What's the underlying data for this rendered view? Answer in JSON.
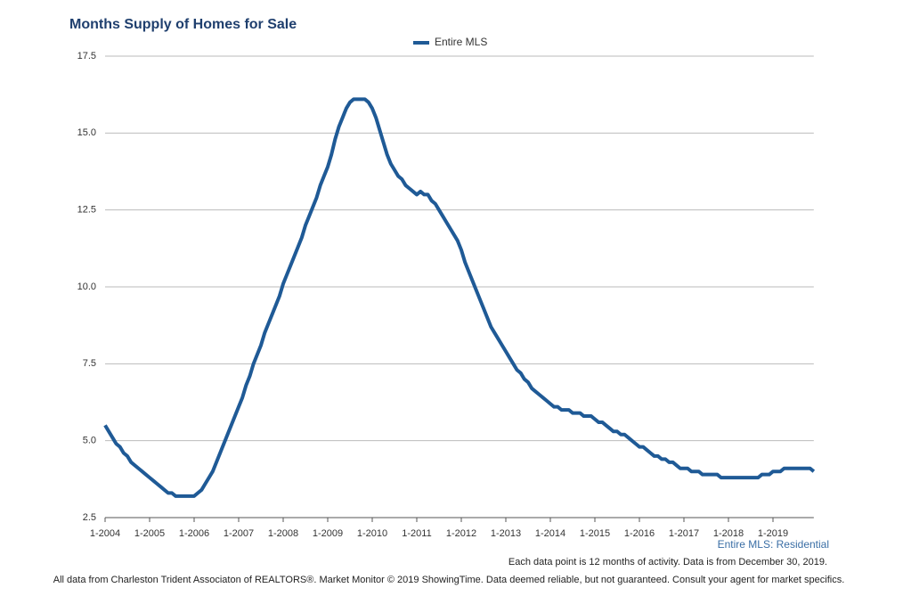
{
  "chart_data": {
    "type": "line",
    "title": "Months Supply of Homes for Sale",
    "annotation": "Entire MLS: Residential",
    "note": "Each data point is 12 months of activity. Data is from December 30, 2019.",
    "footer": "All data from Charleston Trident Associaton of REALTORS®. Market Monitor © 2019 ShowingTime. Data deemed reliable, but not guaranteed. Consult your agent for market specifics.",
    "categories": [
      "1-2004",
      null,
      null,
      null,
      null,
      null,
      null,
      null,
      null,
      null,
      null,
      null,
      "1-2005",
      null,
      null,
      null,
      null,
      null,
      null,
      null,
      null,
      null,
      null,
      null,
      "1-2006",
      null,
      null,
      null,
      null,
      null,
      null,
      null,
      null,
      null,
      null,
      null,
      "1-2007",
      null,
      null,
      null,
      null,
      null,
      null,
      null,
      null,
      null,
      null,
      null,
      "1-2008",
      null,
      null,
      null,
      null,
      null,
      null,
      null,
      null,
      null,
      null,
      null,
      "1-2009",
      null,
      null,
      null,
      null,
      null,
      null,
      null,
      null,
      null,
      null,
      null,
      "1-2010",
      null,
      null,
      null,
      null,
      null,
      null,
      null,
      null,
      null,
      null,
      null,
      "1-2011",
      null,
      null,
      null,
      null,
      null,
      null,
      null,
      null,
      null,
      null,
      null,
      "1-2012",
      null,
      null,
      null,
      null,
      null,
      null,
      null,
      null,
      null,
      null,
      null,
      "1-2013",
      null,
      null,
      null,
      null,
      null,
      null,
      null,
      null,
      null,
      null,
      null,
      "1-2014",
      null,
      null,
      null,
      null,
      null,
      null,
      null,
      null,
      null,
      null,
      null,
      "1-2015",
      null,
      null,
      null,
      null,
      null,
      null,
      null,
      null,
      null,
      null,
      null,
      "1-2016",
      null,
      null,
      null,
      null,
      null,
      null,
      null,
      null,
      null,
      null,
      null,
      "1-2017",
      null,
      null,
      null,
      null,
      null,
      null,
      null,
      null,
      null,
      null,
      null,
      "1-2018",
      null,
      null,
      null,
      null,
      null,
      null,
      null,
      null,
      null,
      null,
      null,
      "1-2019",
      null,
      null,
      null,
      null,
      null,
      null,
      null,
      null,
      null,
      null,
      null
    ],
    "series": [
      {
        "name": "Entire MLS",
        "color": "#1f5a96",
        "values": [
          5.5,
          5.3,
          5.1,
          4.9,
          4.8,
          4.6,
          4.5,
          4.3,
          4.2,
          4.1,
          4.0,
          3.9,
          3.8,
          3.7,
          3.6,
          3.5,
          3.4,
          3.3,
          3.3,
          3.2,
          3.2,
          3.2,
          3.2,
          3.2,
          3.2,
          3.3,
          3.4,
          3.6,
          3.8,
          4.0,
          4.3,
          4.6,
          4.9,
          5.2,
          5.5,
          5.8,
          6.1,
          6.4,
          6.8,
          7.1,
          7.5,
          7.8,
          8.1,
          8.5,
          8.8,
          9.1,
          9.4,
          9.7,
          10.1,
          10.4,
          10.7,
          11.0,
          11.3,
          11.6,
          12.0,
          12.3,
          12.6,
          12.9,
          13.3,
          13.6,
          13.9,
          14.3,
          14.8,
          15.2,
          15.5,
          15.8,
          16.0,
          16.1,
          16.1,
          16.1,
          16.1,
          16.0,
          15.8,
          15.5,
          15.1,
          14.7,
          14.3,
          14.0,
          13.8,
          13.6,
          13.5,
          13.3,
          13.2,
          13.1,
          13.0,
          13.1,
          13.0,
          13.0,
          12.8,
          12.7,
          12.5,
          12.3,
          12.1,
          11.9,
          11.7,
          11.5,
          11.2,
          10.8,
          10.5,
          10.2,
          9.9,
          9.6,
          9.3,
          9.0,
          8.7,
          8.5,
          8.3,
          8.1,
          7.9,
          7.7,
          7.5,
          7.3,
          7.2,
          7.0,
          6.9,
          6.7,
          6.6,
          6.5,
          6.4,
          6.3,
          6.2,
          6.1,
          6.1,
          6.0,
          6.0,
          6.0,
          5.9,
          5.9,
          5.9,
          5.8,
          5.8,
          5.8,
          5.7,
          5.6,
          5.6,
          5.5,
          5.4,
          5.3,
          5.3,
          5.2,
          5.2,
          5.1,
          5.0,
          4.9,
          4.8,
          4.8,
          4.7,
          4.6,
          4.5,
          4.5,
          4.4,
          4.4,
          4.3,
          4.3,
          4.2,
          4.1,
          4.1,
          4.1,
          4.0,
          4.0,
          4.0,
          3.9,
          3.9,
          3.9,
          3.9,
          3.9,
          3.8,
          3.8,
          3.8,
          3.8,
          3.8,
          3.8,
          3.8,
          3.8,
          3.8,
          3.8,
          3.8,
          3.9,
          3.9,
          3.9,
          4.0,
          4.0,
          4.0,
          4.1,
          4.1,
          4.1,
          4.1,
          4.1,
          4.1,
          4.1,
          4.1,
          4.0
        ]
      }
    ],
    "ylim": [
      2.5,
      17.5
    ],
    "yticks": [
      2.5,
      {
        "value": 5,
        "label": "5.0"
      },
      7.5,
      {
        "value": 10,
        "label": "10.0"
      },
      12.5,
      {
        "value": 15,
        "label": "15.0"
      },
      17.5
    ],
    "grid": true,
    "legend": "top"
  }
}
